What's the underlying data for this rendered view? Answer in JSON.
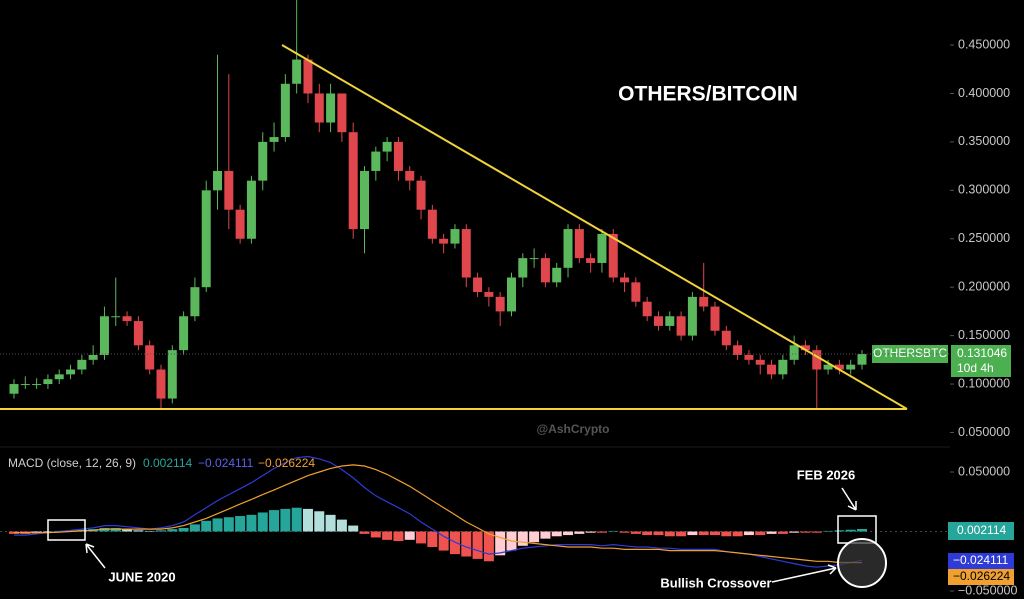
{
  "chart_data": {
    "type": "candlestick",
    "title": "OTHERS/BITCOIN",
    "watermark": "@AshCrypto",
    "up_color": "#5cb85c",
    "down_color": "#e0474c",
    "open": [
      0.09,
      0.1,
      0.1,
      0.1,
      0.105,
      0.11,
      0.115,
      0.125,
      0.13,
      0.17,
      0.17,
      0.165,
      0.14,
      0.115,
      0.085,
      0.135,
      0.17,
      0.2,
      0.3,
      0.32,
      0.28,
      0.25,
      0.31,
      0.35,
      0.355,
      0.41,
      0.435,
      0.4,
      0.37,
      0.4,
      0.36,
      0.26,
      0.32,
      0.34,
      0.35,
      0.32,
      0.31,
      0.28,
      0.25,
      0.245,
      0.26,
      0.21,
      0.195,
      0.19,
      0.175,
      0.21,
      0.23,
      0.23,
      0.205,
      0.22,
      0.26,
      0.23,
      0.225,
      0.255,
      0.21,
      0.205,
      0.185,
      0.17,
      0.16,
      0.17,
      0.15,
      0.19,
      0.18,
      0.155,
      0.14,
      0.13,
      0.125,
      0.12,
      0.11,
      0.125,
      0.14,
      0.135,
      0.115,
      0.12,
      0.115,
      0.12
    ],
    "high": [
      0.105,
      0.108,
      0.106,
      0.11,
      0.115,
      0.12,
      0.13,
      0.14,
      0.18,
      0.21,
      0.175,
      0.17,
      0.145,
      0.12,
      0.14,
      0.175,
      0.21,
      0.31,
      0.44,
      0.42,
      0.285,
      0.315,
      0.36,
      0.37,
      0.42,
      0.5,
      0.44,
      0.41,
      0.41,
      0.4,
      0.37,
      0.325,
      0.345,
      0.355,
      0.355,
      0.325,
      0.315,
      0.285,
      0.255,
      0.265,
      0.265,
      0.215,
      0.2,
      0.195,
      0.215,
      0.235,
      0.24,
      0.235,
      0.225,
      0.265,
      0.265,
      0.235,
      0.26,
      0.26,
      0.215,
      0.21,
      0.19,
      0.175,
      0.175,
      0.175,
      0.195,
      0.225,
      0.185,
      0.16,
      0.145,
      0.135,
      0.13,
      0.125,
      0.13,
      0.15,
      0.145,
      0.14,
      0.125,
      0.125,
      0.125,
      0.135
    ],
    "low": [
      0.085,
      0.095,
      0.095,
      0.095,
      0.1,
      0.105,
      0.11,
      0.12,
      0.125,
      0.16,
      0.16,
      0.135,
      0.11,
      0.075,
      0.08,
      0.13,
      0.165,
      0.195,
      0.28,
      0.26,
      0.245,
      0.245,
      0.3,
      0.34,
      0.35,
      0.4,
      0.39,
      0.36,
      0.36,
      0.35,
      0.25,
      0.235,
      0.31,
      0.33,
      0.31,
      0.3,
      0.27,
      0.245,
      0.235,
      0.24,
      0.2,
      0.19,
      0.18,
      0.16,
      0.17,
      0.2,
      0.22,
      0.2,
      0.2,
      0.21,
      0.225,
      0.215,
      0.215,
      0.205,
      0.195,
      0.18,
      0.165,
      0.155,
      0.155,
      0.145,
      0.145,
      0.175,
      0.15,
      0.135,
      0.125,
      0.12,
      0.11,
      0.105,
      0.105,
      0.12,
      0.13,
      0.075,
      0.11,
      0.11,
      0.11,
      0.115
    ],
    "close": [
      0.1,
      0.1,
      0.1,
      0.105,
      0.11,
      0.115,
      0.125,
      0.13,
      0.17,
      0.17,
      0.165,
      0.14,
      0.115,
      0.085,
      0.135,
      0.17,
      0.2,
      0.3,
      0.32,
      0.28,
      0.25,
      0.31,
      0.35,
      0.355,
      0.41,
      0.435,
      0.4,
      0.37,
      0.4,
      0.36,
      0.26,
      0.32,
      0.34,
      0.35,
      0.32,
      0.31,
      0.28,
      0.25,
      0.245,
      0.26,
      0.21,
      0.195,
      0.19,
      0.175,
      0.21,
      0.23,
      0.23,
      0.205,
      0.22,
      0.26,
      0.23,
      0.225,
      0.255,
      0.21,
      0.205,
      0.185,
      0.17,
      0.16,
      0.17,
      0.15,
      0.19,
      0.18,
      0.155,
      0.14,
      0.13,
      0.125,
      0.12,
      0.11,
      0.125,
      0.14,
      0.135,
      0.115,
      0.12,
      0.115,
      0.12,
      0.131
    ],
    "ylim": [
      0.035,
      0.4965
    ],
    "yticks": [
      {
        "value": 0.45,
        "label": "0.450000"
      },
      {
        "value": 0.4,
        "label": "0.400000"
      },
      {
        "value": 0.35,
        "label": "0.350000"
      },
      {
        "value": 0.3,
        "label": "0.300000"
      },
      {
        "value": 0.25,
        "label": "0.250000"
      },
      {
        "value": 0.2,
        "label": "0.200000"
      },
      {
        "value": 0.15,
        "label": "0.150000"
      },
      {
        "value": 0.1,
        "label": "0.100000"
      },
      {
        "value": 0.05,
        "label": "0.050000"
      }
    ],
    "symbol": "OTHERSBTC",
    "last_price": 0.131046,
    "countdown": "10d 4h",
    "macd": {
      "title": "MACD (close, 12, 26, 9)",
      "ylim": [
        -0.0567,
        0.071
      ],
      "yticks": [
        {
          "value": 0.05,
          "label": "0.050000"
        },
        {
          "value": -0.05,
          "label": "−0.050000"
        }
      ],
      "histogram": {
        "color": "#26a69a",
        "values": [
          -0.002,
          -0.002,
          -0.0015,
          -0.001,
          0.0005,
          0.001,
          0.0015,
          0.002,
          0.003,
          0.003,
          0.002,
          0.001,
          0.0005,
          0.001,
          0.002,
          0.003,
          0.006,
          0.009,
          0.011,
          0.012,
          0.013,
          0.014,
          0.016,
          0.018,
          0.019,
          0.02,
          0.019,
          0.017,
          0.014,
          0.01,
          0.005,
          -0.002,
          -0.005,
          -0.007,
          -0.008,
          -0.007,
          -0.01,
          -0.013,
          -0.016,
          -0.019,
          -0.021,
          -0.023,
          -0.025,
          -0.02,
          -0.016,
          -0.012,
          -0.009,
          -0.006,
          -0.004,
          -0.003,
          -0.002,
          -0.001,
          -0.001,
          0.0005,
          -0.001,
          -0.002,
          -0.003,
          -0.003,
          -0.004,
          -0.004,
          -0.003,
          -0.003,
          -0.003,
          -0.004,
          -0.004,
          -0.003,
          -0.003,
          -0.002,
          -0.002,
          -0.001,
          -0.001,
          -0.001,
          0.0005,
          0.001,
          0.0015,
          0.002114
        ]
      },
      "macd_line": {
        "color": "#2f3bd6",
        "last_label": "−0.024111",
        "values": [
          -0.003,
          -0.003,
          -0.002,
          -0.001,
          0,
          0.001,
          0.002,
          0.003,
          0.005,
          0.005,
          0.004,
          0.003,
          0.002,
          0.003,
          0.005,
          0.008,
          0.014,
          0.02,
          0.026,
          0.031,
          0.036,
          0.041,
          0.047,
          0.053,
          0.058,
          0.062,
          0.063,
          0.061,
          0.058,
          0.052,
          0.045,
          0.037,
          0.03,
          0.025,
          0.02,
          0.015,
          0.008,
          0.002,
          -0.004,
          -0.009,
          -0.013,
          -0.016,
          -0.019,
          -0.018,
          -0.016,
          -0.014,
          -0.013,
          -0.012,
          -0.011,
          -0.011,
          -0.011,
          -0.011,
          -0.012,
          -0.011,
          -0.012,
          -0.013,
          -0.013,
          -0.014,
          -0.014,
          -0.015,
          -0.015,
          -0.015,
          -0.015,
          -0.017,
          -0.018,
          -0.019,
          -0.021,
          -0.023,
          -0.025,
          -0.027,
          -0.029,
          -0.03,
          -0.029,
          -0.028,
          -0.026,
          -0.024111
        ]
      },
      "signal_line": {
        "color": "#f0a030",
        "last_label": "−0.026224",
        "values": [
          -0.001,
          -0.001,
          -0.001,
          -0.001,
          -0.0005,
          0,
          0.0005,
          0.001,
          0.002,
          0.002,
          0.002,
          0.002,
          0.002,
          0.002,
          0.003,
          0.005,
          0.008,
          0.011,
          0.015,
          0.019,
          0.023,
          0.027,
          0.031,
          0.035,
          0.039,
          0.043,
          0.047,
          0.05,
          0.053,
          0.055,
          0.056,
          0.055,
          0.052,
          0.048,
          0.043,
          0.038,
          0.032,
          0.026,
          0.02,
          0.014,
          0.008,
          0.003,
          -0.002,
          -0.005,
          -0.008,
          -0.009,
          -0.01,
          -0.011,
          -0.012,
          -0.013,
          -0.013,
          -0.013,
          -0.014,
          -0.014,
          -0.015,
          -0.015,
          -0.015,
          -0.015,
          -0.016,
          -0.016,
          -0.016,
          -0.016,
          -0.016,
          -0.017,
          -0.018,
          -0.019,
          -0.02,
          -0.021,
          -0.022,
          -0.023,
          -0.024,
          -0.025,
          -0.025,
          -0.026,
          -0.026,
          -0.026224
        ]
      }
    },
    "annotations": [
      "JUNE 2020",
      "FEB 2026",
      "Bullish Crossover"
    ]
  }
}
